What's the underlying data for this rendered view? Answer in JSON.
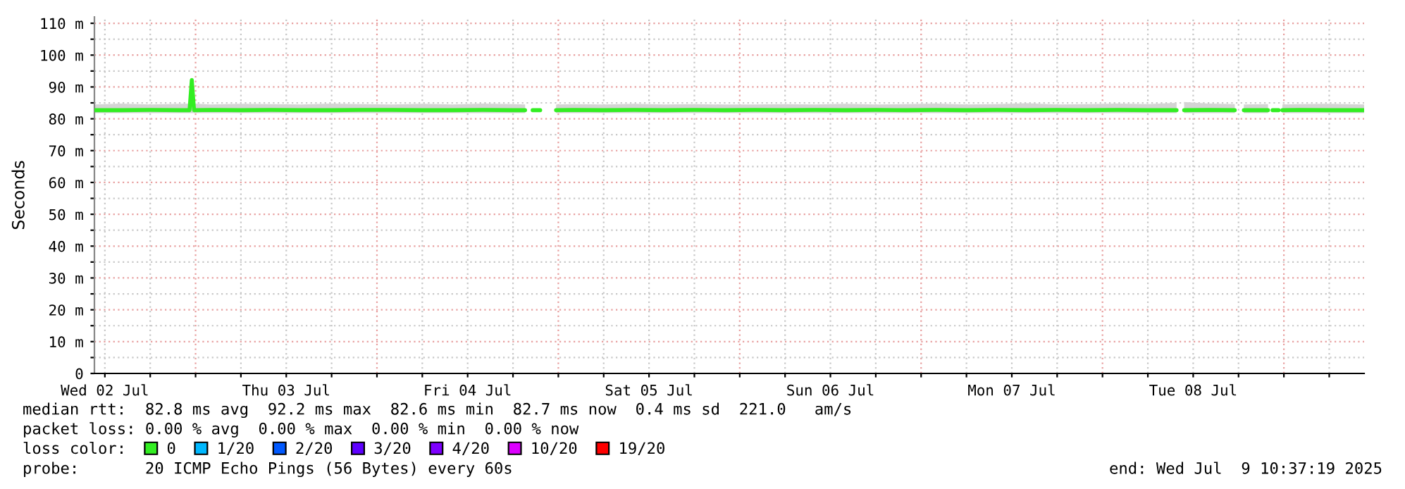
{
  "chart_data": {
    "type": "line",
    "ylabel": "Seconds",
    "x": [
      "2025-07-02T10:37",
      "2025-07-02T14:00",
      "2025-07-02T18:00",
      "2025-07-02T22:00",
      "2025-07-02T23:12",
      "2025-07-02T23:30",
      "2025-07-02T23:48",
      "2025-07-03T02:00",
      "2025-07-03T06:00",
      "2025-07-03T10:00",
      "2025-07-03T14:00",
      "2025-07-03T18:00",
      "2025-07-03T22:00",
      "2025-07-04T02:00",
      "2025-07-04T06:00",
      "2025-07-04T10:00",
      "2025-07-04T14:00",
      "2025-07-04T18:00",
      "2025-07-04T19:36",
      "2025-07-04T20:00",
      "2025-07-04T20:36",
      "2025-07-04T21:36",
      "2025-07-04T22:00",
      "2025-07-04T23:42",
      "2025-07-05T02:00",
      "2025-07-05T06:00",
      "2025-07-05T10:00",
      "2025-07-05T14:00",
      "2025-07-05T18:00",
      "2025-07-05T22:00",
      "2025-07-06T02:00",
      "2025-07-06T06:00",
      "2025-07-06T10:00",
      "2025-07-06T14:00",
      "2025-07-06T18:00",
      "2025-07-06T22:00",
      "2025-07-07T02:00",
      "2025-07-07T06:00",
      "2025-07-07T10:00",
      "2025-07-07T14:00",
      "2025-07-07T18:00",
      "2025-07-07T22:00",
      "2025-07-08T02:00",
      "2025-07-08T06:00",
      "2025-07-08T09:48",
      "2025-07-08T10:12",
      "2025-07-08T10:48",
      "2025-07-08T14:00",
      "2025-07-08T17:30",
      "2025-07-08T18:00",
      "2025-07-08T18:42",
      "2025-07-08T21:54",
      "2025-07-08T22:18",
      "2025-07-08T22:30",
      "2025-07-08T23:18",
      "2025-07-08T23:24",
      "2025-07-08T23:48",
      "2025-07-09T02:00",
      "2025-07-09T06:00",
      "2025-07-09T10:37"
    ],
    "series": [
      {
        "name": "0",
        "color": "#33ee22",
        "values": [
          82.7,
          82.7,
          82.8,
          82.7,
          82.7,
          92.2,
          82.7,
          82.8,
          82.7,
          82.8,
          82.7,
          82.7,
          82.8,
          82.8,
          82.7,
          82.7,
          82.8,
          82.7,
          82.7,
          null,
          82.7,
          82.7,
          null,
          82.7,
          82.8,
          82.7,
          82.8,
          82.7,
          82.8,
          82.7,
          82.8,
          82.7,
          82.8,
          82.7,
          82.8,
          82.7,
          82.8,
          82.7,
          82.8,
          82.7,
          82.8,
          82.7,
          82.8,
          82.7,
          82.7,
          null,
          82.7,
          82.8,
          82.7,
          null,
          82.7,
          82.7,
          null,
          82.7,
          82.7,
          null,
          82.7,
          82.8,
          82.7,
          82.7
        ],
        "lower": [
          81.8,
          81.8,
          81.8,
          81.8,
          81.8,
          81.8,
          81.8,
          81.8,
          81.8,
          81.8,
          81.8,
          81.8,
          81.8,
          81.8,
          81.8,
          81.8,
          81.8,
          81.8,
          81.8,
          null,
          null,
          null,
          null,
          81.8,
          81.8,
          81.8,
          81.8,
          81.8,
          81.8,
          81.8,
          81.8,
          81.8,
          81.8,
          81.8,
          81.8,
          81.8,
          81.8,
          81.8,
          81.8,
          81.8,
          81.8,
          81.8,
          81.8,
          81.8,
          81.8,
          null,
          81.8,
          81.8,
          81.8,
          null,
          81.8,
          81.8,
          null,
          null,
          null,
          null,
          81.8,
          81.8,
          81.8,
          81.8
        ],
        "upper": [
          84.5,
          84.8,
          84.5,
          84.7,
          84.7,
          92.2,
          84.8,
          84.5,
          84.7,
          84.6,
          84.5,
          84.8,
          84.6,
          84.5,
          84.7,
          84.5,
          84.8,
          84.6,
          84.5,
          null,
          null,
          null,
          null,
          84.5,
          84.6,
          84.5,
          84.7,
          84.5,
          84.6,
          84.5,
          84.5,
          84.6,
          84.5,
          84.7,
          84.5,
          84.6,
          84.8,
          84.5,
          84.6,
          84.9,
          84.5,
          84.6,
          84.8,
          84.6,
          85.0,
          null,
          85.3,
          84.8,
          84.6,
          null,
          84.5,
          84.6,
          null,
          null,
          null,
          null,
          84.5,
          84.6,
          84.7,
          84.5
        ]
      },
      {
        "name": "1/20",
        "color": "#00b8ff",
        "values": [
          null,
          null,
          null,
          null,
          null,
          null,
          null,
          null,
          null,
          null,
          null,
          null,
          null,
          null,
          null,
          null,
          null,
          null,
          null,
          null,
          null,
          null,
          null,
          null,
          null,
          null,
          null,
          null,
          null,
          null,
          null,
          null,
          null,
          null,
          null,
          null,
          null,
          null,
          null,
          null,
          null,
          null,
          null,
          null,
          null,
          null,
          null,
          null,
          null,
          null,
          null,
          null,
          null,
          null,
          null,
          null,
          null,
          null,
          null,
          null
        ]
      },
      {
        "name": "2/20",
        "color": "#0059ff",
        "values": [
          null,
          null,
          null,
          null,
          null,
          null,
          null,
          null,
          null,
          null,
          null,
          null,
          null,
          null,
          null,
          null,
          null,
          null,
          null,
          null,
          null,
          null,
          null,
          null,
          null,
          null,
          null,
          null,
          null,
          null,
          null,
          null,
          null,
          null,
          null,
          null,
          null,
          null,
          null,
          null,
          null,
          null,
          null,
          null,
          null,
          null,
          null,
          null,
          null,
          null,
          null,
          null,
          null,
          null,
          null,
          null,
          null,
          null,
          null,
          null
        ]
      },
      {
        "name": "3/20",
        "color": "#5e00ff",
        "values": [
          null,
          null,
          null,
          null,
          null,
          null,
          null,
          null,
          null,
          null,
          null,
          null,
          null,
          null,
          null,
          null,
          null,
          null,
          null,
          null,
          null,
          null,
          null,
          null,
          null,
          null,
          null,
          null,
          null,
          null,
          null,
          null,
          null,
          null,
          null,
          null,
          null,
          null,
          null,
          null,
          null,
          null,
          null,
          null,
          null,
          null,
          null,
          null,
          null,
          null,
          null,
          null,
          null,
          null,
          null,
          null,
          null,
          null,
          null,
          null
        ]
      },
      {
        "name": "4/20",
        "color": "#7e00ff",
        "values": [
          null,
          null,
          null,
          null,
          null,
          null,
          null,
          null,
          null,
          null,
          null,
          null,
          null,
          null,
          null,
          null,
          null,
          null,
          null,
          null,
          null,
          null,
          null,
          null,
          null,
          null,
          null,
          null,
          null,
          null,
          null,
          null,
          null,
          null,
          null,
          null,
          null,
          null,
          null,
          null,
          null,
          null,
          null,
          null,
          null,
          null,
          null,
          null,
          null,
          null,
          null,
          null,
          null,
          null,
          null,
          null,
          null,
          null,
          null,
          null
        ]
      },
      {
        "name": "10/20",
        "color": "#dd00ff",
        "values": [
          null,
          null,
          null,
          null,
          null,
          null,
          null,
          null,
          null,
          null,
          null,
          null,
          null,
          null,
          null,
          null,
          null,
          null,
          null,
          null,
          null,
          null,
          null,
          null,
          null,
          null,
          null,
          null,
          null,
          null,
          null,
          null,
          null,
          null,
          null,
          null,
          null,
          null,
          null,
          null,
          null,
          null,
          null,
          null,
          null,
          null,
          null,
          null,
          null,
          null,
          null,
          null,
          null,
          null,
          null,
          null,
          null,
          null,
          null,
          null
        ]
      },
      {
        "name": "19/20",
        "color": "#ff0000",
        "values": [
          null,
          null,
          null,
          null,
          null,
          null,
          null,
          null,
          null,
          null,
          null,
          null,
          null,
          null,
          null,
          null,
          null,
          null,
          null,
          null,
          null,
          null,
          null,
          null,
          null,
          null,
          null,
          null,
          null,
          null,
          null,
          null,
          null,
          null,
          null,
          null,
          null,
          null,
          null,
          null,
          null,
          null,
          null,
          null,
          null,
          null,
          null,
          null,
          null,
          null,
          null,
          null,
          null,
          null,
          null,
          null,
          null,
          null,
          null,
          null
        ]
      }
    ],
    "xlim": [
      "2025-07-02T10:37",
      "2025-07-09T10:37"
    ],
    "xticks": [
      {
        "value": "2025-07-02T12:00",
        "label": "Wed 02 Jul"
      },
      {
        "value": "2025-07-02T18:00",
        "label": null
      },
      {
        "value": "2025-07-03T00:00",
        "label": null
      },
      {
        "value": "2025-07-03T06:00",
        "label": null
      },
      {
        "value": "2025-07-03T12:00",
        "label": "Thu 03 Jul"
      },
      {
        "value": "2025-07-03T18:00",
        "label": null
      },
      {
        "value": "2025-07-04T00:00",
        "label": null
      },
      {
        "value": "2025-07-04T06:00",
        "label": null
      },
      {
        "value": "2025-07-04T12:00",
        "label": "Fri 04 Jul"
      },
      {
        "value": "2025-07-04T18:00",
        "label": null
      },
      {
        "value": "2025-07-05T00:00",
        "label": null
      },
      {
        "value": "2025-07-05T06:00",
        "label": null
      },
      {
        "value": "2025-07-05T12:00",
        "label": "Sat 05 Jul"
      },
      {
        "value": "2025-07-05T18:00",
        "label": null
      },
      {
        "value": "2025-07-06T00:00",
        "label": null
      },
      {
        "value": "2025-07-06T06:00",
        "label": null
      },
      {
        "value": "2025-07-06T12:00",
        "label": "Sun 06 Jul"
      },
      {
        "value": "2025-07-06T18:00",
        "label": null
      },
      {
        "value": "2025-07-07T00:00",
        "label": null
      },
      {
        "value": "2025-07-07T06:00",
        "label": null
      },
      {
        "value": "2025-07-07T12:00",
        "label": "Mon 07 Jul"
      },
      {
        "value": "2025-07-07T18:00",
        "label": null
      },
      {
        "value": "2025-07-08T00:00",
        "label": null
      },
      {
        "value": "2025-07-08T06:00",
        "label": null
      },
      {
        "value": "2025-07-08T12:00",
        "label": "Tue 08 Jul"
      },
      {
        "value": "2025-07-08T18:00",
        "label": null
      },
      {
        "value": "2025-07-09T00:00",
        "label": null
      },
      {
        "value": "2025-07-09T06:00",
        "label": null
      }
    ],
    "ylim": [
      0,
      112
    ],
    "yticks": [
      0,
      {
        "value": 5,
        "label": null
      },
      {
        "value": 10,
        "label": "10 m"
      },
      {
        "value": 15,
        "label": null
      },
      {
        "value": 20,
        "label": "20 m"
      },
      {
        "value": 25,
        "label": null
      },
      {
        "value": 30,
        "label": "30 m"
      },
      {
        "value": 35,
        "label": null
      },
      {
        "value": 40,
        "label": "40 m"
      },
      {
        "value": 45,
        "label": null
      },
      {
        "value": 50,
        "label": "50 m"
      },
      {
        "value": 55,
        "label": null
      },
      {
        "value": 60,
        "label": "60 m"
      },
      {
        "value": 65,
        "label": null
      },
      {
        "value": 70,
        "label": "70 m"
      },
      {
        "value": 75,
        "label": null
      },
      {
        "value": 80,
        "label": "80 m"
      },
      {
        "value": 85,
        "label": null
      },
      {
        "value": 90,
        "label": "90 m"
      },
      {
        "value": 95,
        "label": null
      },
      {
        "value": 100,
        "label": "100 m"
      },
      {
        "value": 105,
        "label": null
      },
      {
        "value": 110,
        "label": "110 m"
      }
    ],
    "grid": true,
    "legend": "bottom",
    "legend_title": "loss color:",
    "marker": "none",
    "line_style": "solid",
    "annotations": [
      "median rtt:  82.8 ms avg  92.2 ms max  82.6 ms min  82.7 ms now  0.4 ms sd  221.0   am/s",
      "packet loss: 0.00 % avg  0.00 % max  0.00 % min  0.00 % now",
      "probe:       20 ICMP Echo Pings (56 Bytes) every 60s",
      "end: Wed Jul  9 10:37:19 2025"
    ]
  }
}
